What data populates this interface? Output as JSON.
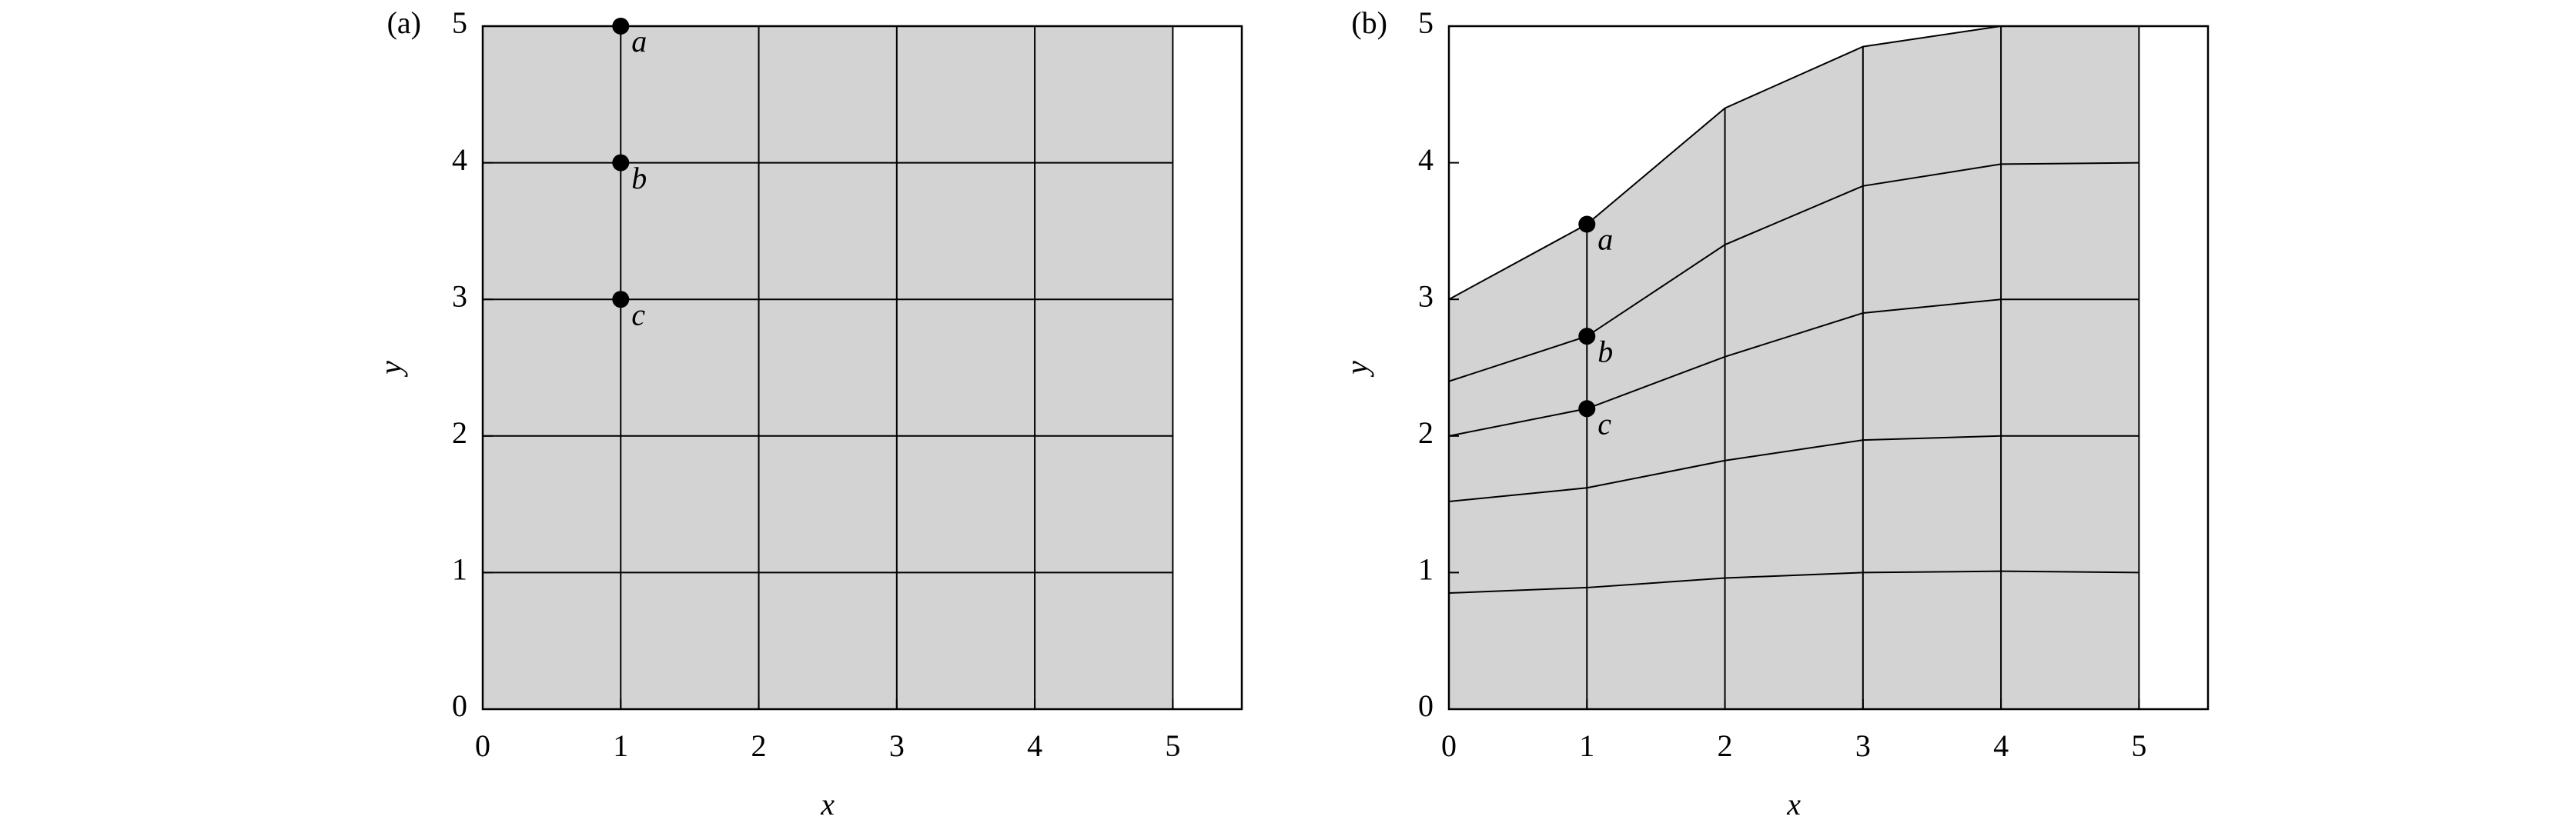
{
  "chart_data": [
    {
      "type": "mesh",
      "panel_label": "(a)",
      "xlabel": "x",
      "ylabel": "y",
      "xlim": [
        0,
        5.5
      ],
      "ylim": [
        0,
        5
      ],
      "xticks": [
        0,
        1,
        2,
        3,
        4,
        5
      ],
      "yticks": [
        0,
        1,
        2,
        3,
        4,
        5
      ],
      "fill_color": "#d3d3d3",
      "line_color": "#000000",
      "x": [
        0,
        1,
        2,
        3,
        4,
        5
      ],
      "series": [
        {
          "values": [
            0,
            0,
            0,
            0,
            0,
            0
          ]
        },
        {
          "values": [
            1,
            1,
            1,
            1,
            1,
            1
          ]
        },
        {
          "values": [
            2,
            2,
            2,
            2,
            2,
            2
          ]
        },
        {
          "values": [
            3,
            3,
            3,
            3,
            3,
            3
          ]
        },
        {
          "values": [
            4,
            4,
            4,
            4,
            4,
            4
          ]
        },
        {
          "values": [
            5,
            5,
            5,
            5,
            5,
            5
          ]
        }
      ],
      "points": [
        {
          "label": "a",
          "x": 1,
          "y": 5
        },
        {
          "label": "b",
          "x": 1,
          "y": 4
        },
        {
          "label": "c",
          "x": 1,
          "y": 3
        }
      ]
    },
    {
      "type": "mesh",
      "panel_label": "(b)",
      "xlabel": "x",
      "ylabel": "y",
      "xlim": [
        0,
        5.5
      ],
      "ylim": [
        0,
        5
      ],
      "xticks": [
        0,
        1,
        2,
        3,
        4,
        5
      ],
      "yticks": [
        0,
        1,
        2,
        3,
        4,
        5
      ],
      "fill_color": "#d3d3d3",
      "line_color": "#000000",
      "x": [
        0,
        1,
        2,
        3,
        4,
        5
      ],
      "series": [
        {
          "values": [
            0,
            0,
            0,
            0,
            0,
            0
          ]
        },
        {
          "values": [
            0.85,
            0.89,
            0.96,
            1.0,
            1.01,
            1.0
          ]
        },
        {
          "values": [
            1.52,
            1.62,
            1.82,
            1.97,
            2.0,
            2.0
          ]
        },
        {
          "values": [
            2.0,
            2.2,
            2.58,
            2.9,
            3.0,
            3.0
          ]
        },
        {
          "values": [
            2.4,
            2.73,
            3.4,
            3.83,
            3.99,
            4.0
          ]
        },
        {
          "values": [
            3.0,
            3.55,
            4.4,
            4.85,
            5.0,
            5.0
          ]
        }
      ],
      "points": [
        {
          "label": "a",
          "x": 1,
          "y": 3.55
        },
        {
          "label": "b",
          "x": 1,
          "y": 2.73
        },
        {
          "label": "c",
          "x": 1,
          "y": 2.2
        }
      ]
    }
  ]
}
